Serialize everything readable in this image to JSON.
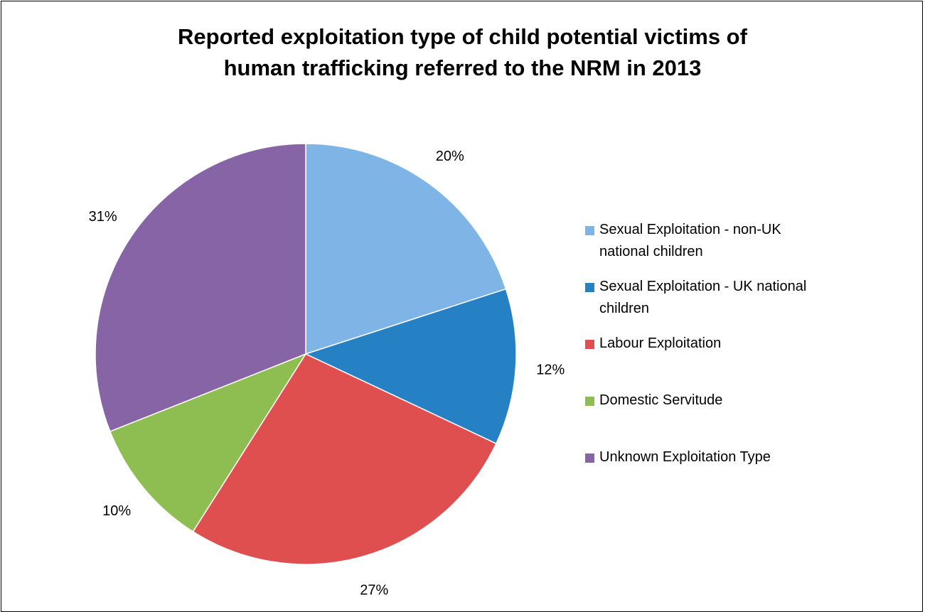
{
  "chart_data": {
    "type": "pie",
    "title_lines": [
      "Reported exploitation type of child potential victims of",
      "human trafficking referred to the NRM in 2013"
    ],
    "slices": [
      {
        "name": "Sexual Exploitation - non-UK national children",
        "value": 20,
        "label": "20%",
        "color": "#7EB5E6"
      },
      {
        "name": "Sexual Exploitation - UK national children",
        "value": 12,
        "label": "12%",
        "color": "#2580C4"
      },
      {
        "name": "Labour Exploitation",
        "value": 27,
        "label": "27%",
        "color": "#E04F4F"
      },
      {
        "name": "Domestic Servitude",
        "value": 10,
        "label": "10%",
        "color": "#8EBD51"
      },
      {
        "name": "Unknown Exploitation Type",
        "value": 31,
        "label": "31%",
        "color": "#8764A6"
      }
    ],
    "legend_position": "right",
    "legend_lines": [
      [
        "Sexual Exploitation - non-UK",
        "national children"
      ],
      [
        "Sexual Exploitation - UK national",
        "children"
      ],
      [
        "Labour Exploitation"
      ],
      [
        "Domestic Servitude"
      ],
      [
        "Unknown Exploitation Type"
      ]
    ]
  }
}
